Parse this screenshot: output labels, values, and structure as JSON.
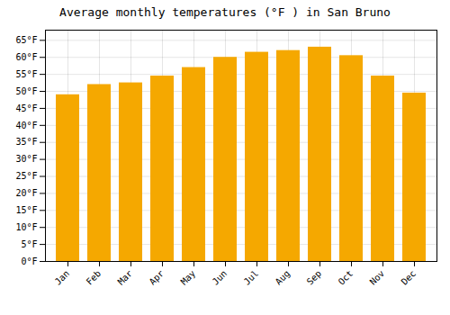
{
  "chart_data": {
    "type": "bar",
    "title": "Average monthly temperatures (°F ) in San Bruno",
    "categories": [
      "Jan",
      "Feb",
      "Mar",
      "Apr",
      "May",
      "Jun",
      "Jul",
      "Aug",
      "Sep",
      "Oct",
      "Nov",
      "Dec"
    ],
    "values": [
      49,
      52,
      52.5,
      54.5,
      57,
      60,
      61.5,
      62,
      63,
      60.5,
      54.5,
      49.5
    ],
    "color": "#F5A800",
    "ylim": [
      0,
      68
    ],
    "yticks": [
      {
        "value": 0,
        "label": "0°F"
      },
      {
        "value": 5,
        "label": "5°F"
      },
      {
        "value": 10,
        "label": "10°F"
      },
      {
        "value": 15,
        "label": "15°F"
      },
      {
        "value": 20,
        "label": "20°F"
      },
      {
        "value": 25,
        "label": "25°F"
      },
      {
        "value": 30,
        "label": "30°F"
      },
      {
        "value": 35,
        "label": "35°F"
      },
      {
        "value": 40,
        "label": "40°F"
      },
      {
        "value": 45,
        "label": "45°F"
      },
      {
        "value": 50,
        "label": "50°F"
      },
      {
        "value": 55,
        "label": "55°F"
      },
      {
        "value": 60,
        "label": "60°F"
      },
      {
        "value": 65,
        "label": "65°F"
      }
    ],
    "grid": true
  }
}
